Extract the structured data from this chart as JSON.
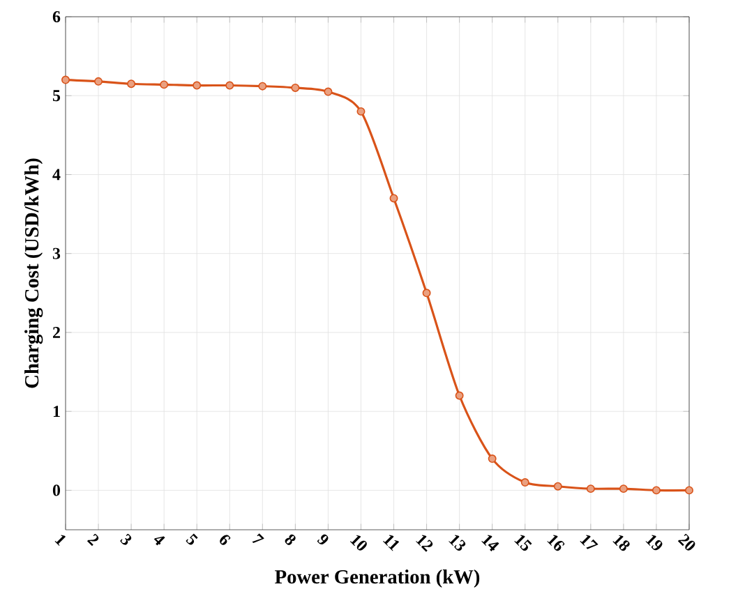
{
  "chart_data": {
    "type": "line",
    "xlabel": "Power Generation (kW)",
    "ylabel": "Charging Cost (USD/kWh)",
    "x": [
      1,
      2,
      3,
      4,
      5,
      6,
      7,
      8,
      9,
      10,
      11,
      12,
      13,
      14,
      15,
      16,
      17,
      18,
      19,
      20
    ],
    "series": [
      {
        "color": "#d95319",
        "values": [
          5.2,
          5.18,
          5.15,
          5.14,
          5.13,
          5.13,
          5.12,
          5.1,
          5.05,
          4.8,
          3.7,
          2.5,
          1.2,
          0.4,
          0.1,
          0.05,
          0.02,
          0.02,
          0.0,
          0.0
        ]
      }
    ],
    "xlim": [
      1,
      20
    ],
    "xticks": [
      1,
      2,
      3,
      4,
      5,
      6,
      7,
      8,
      9,
      10,
      11,
      12,
      13,
      14,
      15,
      16,
      17,
      18,
      19,
      20
    ],
    "ylim": [
      -0.5,
      6
    ],
    "yticks": [
      0,
      1,
      2,
      3,
      4,
      5,
      6
    ],
    "grid": true,
    "marker": "circle",
    "line_style": "solid"
  }
}
